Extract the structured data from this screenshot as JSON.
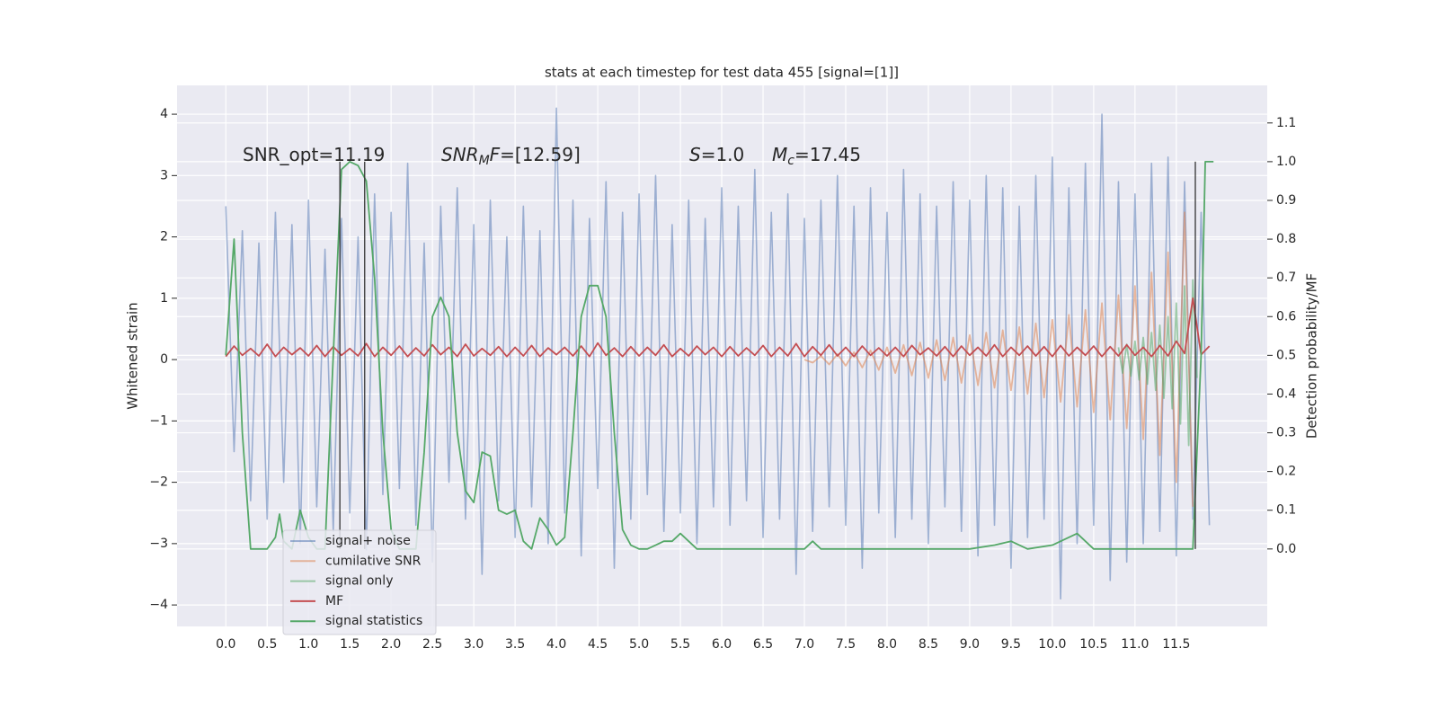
{
  "chart_data": {
    "type": "line",
    "title": "stats at each timestep for test data 455 [signal=[1]]",
    "ylabel": "Whitened strain",
    "y2label": "Detection probability/MF",
    "xlim": [
      -0.59,
      12.6
    ],
    "ylim": [
      -4.35,
      4.47
    ],
    "y2lim": [
      -0.2,
      1.197
    ],
    "grid": true,
    "legend": "lower left",
    "xticks": [
      {
        "value": 0,
        "label": "0.0"
      },
      {
        "value": 0.5,
        "label": "0.5"
      },
      {
        "value": 1,
        "label": "1.0"
      },
      {
        "value": 1.5,
        "label": "1.5"
      },
      {
        "value": 2,
        "label": "2.0"
      },
      {
        "value": 2.5,
        "label": "2.5"
      },
      {
        "value": 3,
        "label": "3.0"
      },
      {
        "value": 3.5,
        "label": "3.5"
      },
      {
        "value": 4,
        "label": "4.0"
      },
      {
        "value": 4.5,
        "label": "4.5"
      },
      {
        "value": 5,
        "label": "5.0"
      },
      {
        "value": 5.5,
        "label": "5.5"
      },
      {
        "value": 6,
        "label": "6.0"
      },
      {
        "value": 6.5,
        "label": "6.5"
      },
      {
        "value": 7,
        "label": "7.0"
      },
      {
        "value": 7.5,
        "label": "7.5"
      },
      {
        "value": 8,
        "label": "8.0"
      },
      {
        "value": 8.5,
        "label": "8.5"
      },
      {
        "value": 9,
        "label": "9.0"
      },
      {
        "value": 9.5,
        "label": "9.5"
      },
      {
        "value": 10,
        "label": "10.0"
      },
      {
        "value": 10.5,
        "label": "10.5"
      },
      {
        "value": 11,
        "label": "11.0"
      },
      {
        "value": 11.5,
        "label": "11.5"
      }
    ],
    "yticks": [
      {
        "value": -4,
        "label": "−4"
      },
      {
        "value": -3,
        "label": "−3"
      },
      {
        "value": -2,
        "label": "−2"
      },
      {
        "value": -1,
        "label": "−1"
      },
      0,
      1,
      2,
      3,
      4
    ],
    "y2ticks": [
      {
        "value": 0,
        "label": "0.0"
      },
      {
        "value": 0.1,
        "label": "0.1"
      },
      {
        "value": 0.2,
        "label": "0.2"
      },
      {
        "value": 0.3,
        "label": "0.3"
      },
      {
        "value": 0.4,
        "label": "0.4"
      },
      {
        "value": 0.5,
        "label": "0.5"
      },
      {
        "value": 0.6,
        "label": "0.6"
      },
      {
        "value": 0.7,
        "label": "0.7"
      },
      {
        "value": 0.8,
        "label": "0.8"
      },
      {
        "value": 0.9,
        "label": "0.9"
      },
      {
        "value": 1,
        "label": "1.0"
      },
      {
        "value": 1.1,
        "label": "1.1"
      }
    ],
    "annotations": [
      [
        {
          "text": "SNR_opt=11.19"
        }
      ],
      [
        {
          "text": "SNR",
          "italic": true
        },
        {
          "text": "M",
          "italic": true,
          "sub": true
        },
        {
          "text": "F",
          "italic": true
        },
        {
          "text": "=[12.59]"
        }
      ],
      [
        {
          "text": "S",
          "italic": true
        },
        {
          "text": "=1.0"
        }
      ],
      [
        {
          "text": "M",
          "italic": true
        },
        {
          "text": "c",
          "italic": true,
          "sub": true
        },
        {
          "text": "=17.45"
        }
      ]
    ],
    "vlines": [
      1.38,
      1.68,
      11.73
    ],
    "vline_color": "#333333",
    "x": [
      0,
      0.1,
      0.2,
      0.3,
      0.4,
      0.5,
      0.6,
      0.7,
      0.8,
      0.9,
      1,
      1.1,
      1.2,
      1.3,
      1.4,
      1.5,
      1.6,
      1.7,
      1.8,
      1.9,
      2,
      2.1,
      2.2,
      2.3,
      2.4,
      2.5,
      2.6,
      2.7,
      2.8,
      2.9,
      3,
      3.1,
      3.2,
      3.3,
      3.4,
      3.5,
      3.6,
      3.7,
      3.8,
      3.9,
      4,
      4.1,
      4.2,
      4.3,
      4.4,
      4.5,
      4.6,
      4.7,
      4.8,
      4.9,
      5,
      5.1,
      5.2,
      5.3,
      5.4,
      5.5,
      5.6,
      5.7,
      5.8,
      5.9,
      6,
      6.1,
      6.2,
      6.3,
      6.4,
      6.5,
      6.6,
      6.7,
      6.8,
      6.9,
      7,
      7.1,
      7.2,
      7.3,
      7.4,
      7.5,
      7.6,
      7.7,
      7.8,
      7.9,
      8,
      8.1,
      8.2,
      8.3,
      8.4,
      8.5,
      8.6,
      8.7,
      8.8,
      8.9,
      9,
      9.1,
      9.2,
      9.3,
      9.4,
      9.5,
      9.6,
      9.7,
      9.8,
      9.9,
      10,
      10.1,
      10.2,
      10.3,
      10.4,
      10.5,
      10.6,
      10.7,
      10.8,
      10.9,
      11,
      11.1,
      11.2,
      11.3,
      11.4,
      11.5,
      11.6,
      11.7,
      11.8,
      11.9
    ],
    "series": [
      {
        "name": "signal+ noise",
        "color": "#4c72b0",
        "alpha": 0.5,
        "values": [
          2.5,
          -1.5,
          2.1,
          -2.3,
          1.9,
          -2.6,
          2.4,
          -2.0,
          2.2,
          -3.0,
          2.6,
          -2.4,
          1.8,
          -2.8,
          2.3,
          -2.5,
          2.0,
          -3.1,
          2.7,
          -2.2,
          2.4,
          -2.1,
          3.2,
          -2.7,
          1.9,
          -3.3,
          2.5,
          -2.0,
          2.8,
          -2.6,
          2.2,
          -3.5,
          2.6,
          -2.3,
          2.0,
          -2.9,
          2.5,
          -2.4,
          2.1,
          -3.0,
          4.1,
          -2.5,
          2.6,
          -3.2,
          2.3,
          -2.1,
          2.9,
          -3.4,
          2.4,
          -2.6,
          2.7,
          -2.2,
          3.0,
          -2.8,
          2.2,
          -2.5,
          2.6,
          -3.0,
          2.3,
          -2.4,
          2.8,
          -2.7,
          2.5,
          -2.3,
          3.1,
          -2.9,
          2.4,
          -2.6,
          2.7,
          -3.5,
          2.3,
          -2.8,
          2.6,
          -2.4,
          3.0,
          -2.7,
          2.5,
          -3.4,
          2.8,
          -2.5,
          2.4,
          -2.9,
          3.1,
          -2.6,
          2.7,
          -3.0,
          2.5,
          -2.4,
          2.9,
          -2.8,
          2.6,
          -3.2,
          3.0,
          -2.7,
          2.8,
          -3.4,
          2.5,
          -2.9,
          3.0,
          -2.6,
          3.3,
          -3.9,
          2.8,
          -3.0,
          3.2,
          -2.7,
          4.0,
          -3.6,
          2.9,
          -3.3,
          2.7,
          -3.0,
          3.2,
          -2.8,
          3.3,
          -3.2,
          2.9,
          -2.6,
          2.4,
          -2.7
        ]
      },
      {
        "name": "cumilative SNR",
        "color": "#dd8452",
        "alpha": 0.55,
        "x": [
          7,
          7.1,
          7.2,
          7.3,
          7.4,
          7.5,
          7.6,
          7.7,
          7.8,
          7.9,
          8,
          8.1,
          8.2,
          8.3,
          8.4,
          8.5,
          8.6,
          8.7,
          8.8,
          8.9,
          9,
          9.1,
          9.2,
          9.3,
          9.4,
          9.5,
          9.6,
          9.7,
          9.8,
          9.9,
          10,
          10.1,
          10.2,
          10.3,
          10.4,
          10.5,
          10.6,
          10.7,
          10.8,
          10.9,
          11,
          11.1,
          11.2,
          11.3,
          11.4,
          11.5,
          11.6,
          11.7
        ],
        "values": [
          0,
          -0.05,
          0.06,
          -0.08,
          0.09,
          -0.1,
          0.12,
          -0.13,
          0.15,
          -0.17,
          0.2,
          -0.22,
          0.24,
          -0.26,
          0.28,
          -0.3,
          0.32,
          -0.34,
          0.36,
          -0.38,
          0.4,
          -0.42,
          0.44,
          -0.46,
          0.48,
          -0.5,
          0.53,
          -0.56,
          0.59,
          -0.62,
          0.65,
          -0.69,
          0.73,
          -0.77,
          0.81,
          -0.86,
          0.92,
          -0.98,
          1.05,
          -1.12,
          1.2,
          -1.3,
          1.42,
          -1.56,
          1.75,
          -2.0,
          2.4,
          -2.4
        ]
      },
      {
        "name": "signal only",
        "color": "#55a868",
        "alpha": 0.55,
        "x": [
          10.8,
          10.85,
          10.9,
          10.95,
          11,
          11.05,
          11.1,
          11.15,
          11.2,
          11.25,
          11.3,
          11.35,
          11.4,
          11.45,
          11.5,
          11.55,
          11.6,
          11.65,
          11.7,
          11.75
        ],
        "values": [
          0.2,
          -0.22,
          0.25,
          -0.27,
          0.3,
          -0.33,
          0.36,
          -0.4,
          0.44,
          -0.5,
          0.56,
          -0.63,
          0.7,
          -0.8,
          0.92,
          -1.05,
          1.2,
          -1.4,
          1.3,
          -0.3
        ]
      },
      {
        "name": "MF",
        "color": "#c44e52",
        "alpha": 1,
        "values": [
          0.05,
          0.22,
          0.07,
          0.18,
          0.06,
          0.25,
          0.05,
          0.2,
          0.08,
          0.19,
          0.06,
          0.23,
          0.05,
          0.21,
          0.07,
          0.18,
          0.06,
          0.26,
          0.05,
          0.2,
          0.07,
          0.22,
          0.05,
          0.19,
          0.06,
          0.24,
          0.08,
          0.2,
          0.05,
          0.25,
          0.06,
          0.18,
          0.07,
          0.21,
          0.05,
          0.2,
          0.06,
          0.23,
          0.05,
          0.19,
          0.08,
          0.2,
          0.06,
          0.22,
          0.05,
          0.27,
          0.07,
          0.19,
          0.05,
          0.21,
          0.06,
          0.2,
          0.07,
          0.24,
          0.05,
          0.18,
          0.06,
          0.22,
          0.08,
          0.2,
          0.05,
          0.21,
          0.06,
          0.19,
          0.07,
          0.23,
          0.05,
          0.2,
          0.06,
          0.26,
          0.05,
          0.21,
          0.07,
          0.24,
          0.06,
          0.2,
          0.05,
          0.22,
          0.07,
          0.19,
          0.06,
          0.2,
          0.05,
          0.23,
          0.08,
          0.19,
          0.06,
          0.21,
          0.05,
          0.22,
          0.07,
          0.2,
          0.06,
          0.24,
          0.05,
          0.2,
          0.07,
          0.22,
          0.06,
          0.21,
          0.05,
          0.23,
          0.06,
          0.2,
          0.07,
          0.22,
          0.05,
          0.21,
          0.06,
          0.24,
          0.07,
          0.2,
          0.05,
          0.23,
          0.06,
          0.3,
          0.1,
          1.0,
          0.08,
          0.22
        ]
      },
      {
        "name": "signal statistics",
        "color": "#55a868",
        "alpha": 1,
        "axis": "y2",
        "x": [
          0,
          0.1,
          0.2,
          0.3,
          0.4,
          0.5,
          0.6,
          0.65,
          0.7,
          0.8,
          0.9,
          1,
          1.1,
          1.2,
          1.3,
          1.4,
          1.5,
          1.6,
          1.7,
          1.8,
          1.9,
          2,
          2.1,
          2.2,
          2.3,
          2.4,
          2.5,
          2.6,
          2.7,
          2.8,
          2.9,
          3,
          3.1,
          3.2,
          3.3,
          3.4,
          3.5,
          3.6,
          3.7,
          3.8,
          3.9,
          4,
          4.1,
          4.2,
          4.3,
          4.4,
          4.5,
          4.6,
          4.7,
          4.8,
          4.9,
          5,
          5.1,
          5.2,
          5.3,
          5.4,
          5.5,
          5.6,
          5.7,
          6,
          6.5,
          7,
          7.1,
          7.2,
          8,
          9,
          9.3,
          9.5,
          9.7,
          10,
          10.3,
          10.5,
          11,
          11.5,
          11.7,
          11.8,
          11.85,
          11.95
        ],
        "values": [
          0.5,
          0.8,
          0.3,
          0,
          0,
          0,
          0.03,
          0.09,
          0.02,
          0,
          0.1,
          0.03,
          0,
          0,
          0.5,
          0.98,
          1,
          0.99,
          0.95,
          0.7,
          0.3,
          0.05,
          0,
          0,
          0,
          0.25,
          0.6,
          0.65,
          0.6,
          0.3,
          0.15,
          0.12,
          0.25,
          0.24,
          0.1,
          0.09,
          0.1,
          0.02,
          0,
          0.08,
          0.05,
          0.01,
          0.03,
          0.3,
          0.6,
          0.68,
          0.68,
          0.6,
          0.3,
          0.05,
          0.01,
          0,
          0,
          0.01,
          0.02,
          0.02,
          0.04,
          0.02,
          0,
          0,
          0,
          0,
          0.02,
          0,
          0,
          0,
          0.01,
          0.02,
          0,
          0.01,
          0.04,
          0,
          0,
          0,
          0,
          0.5,
          1,
          1
        ]
      }
    ]
  }
}
